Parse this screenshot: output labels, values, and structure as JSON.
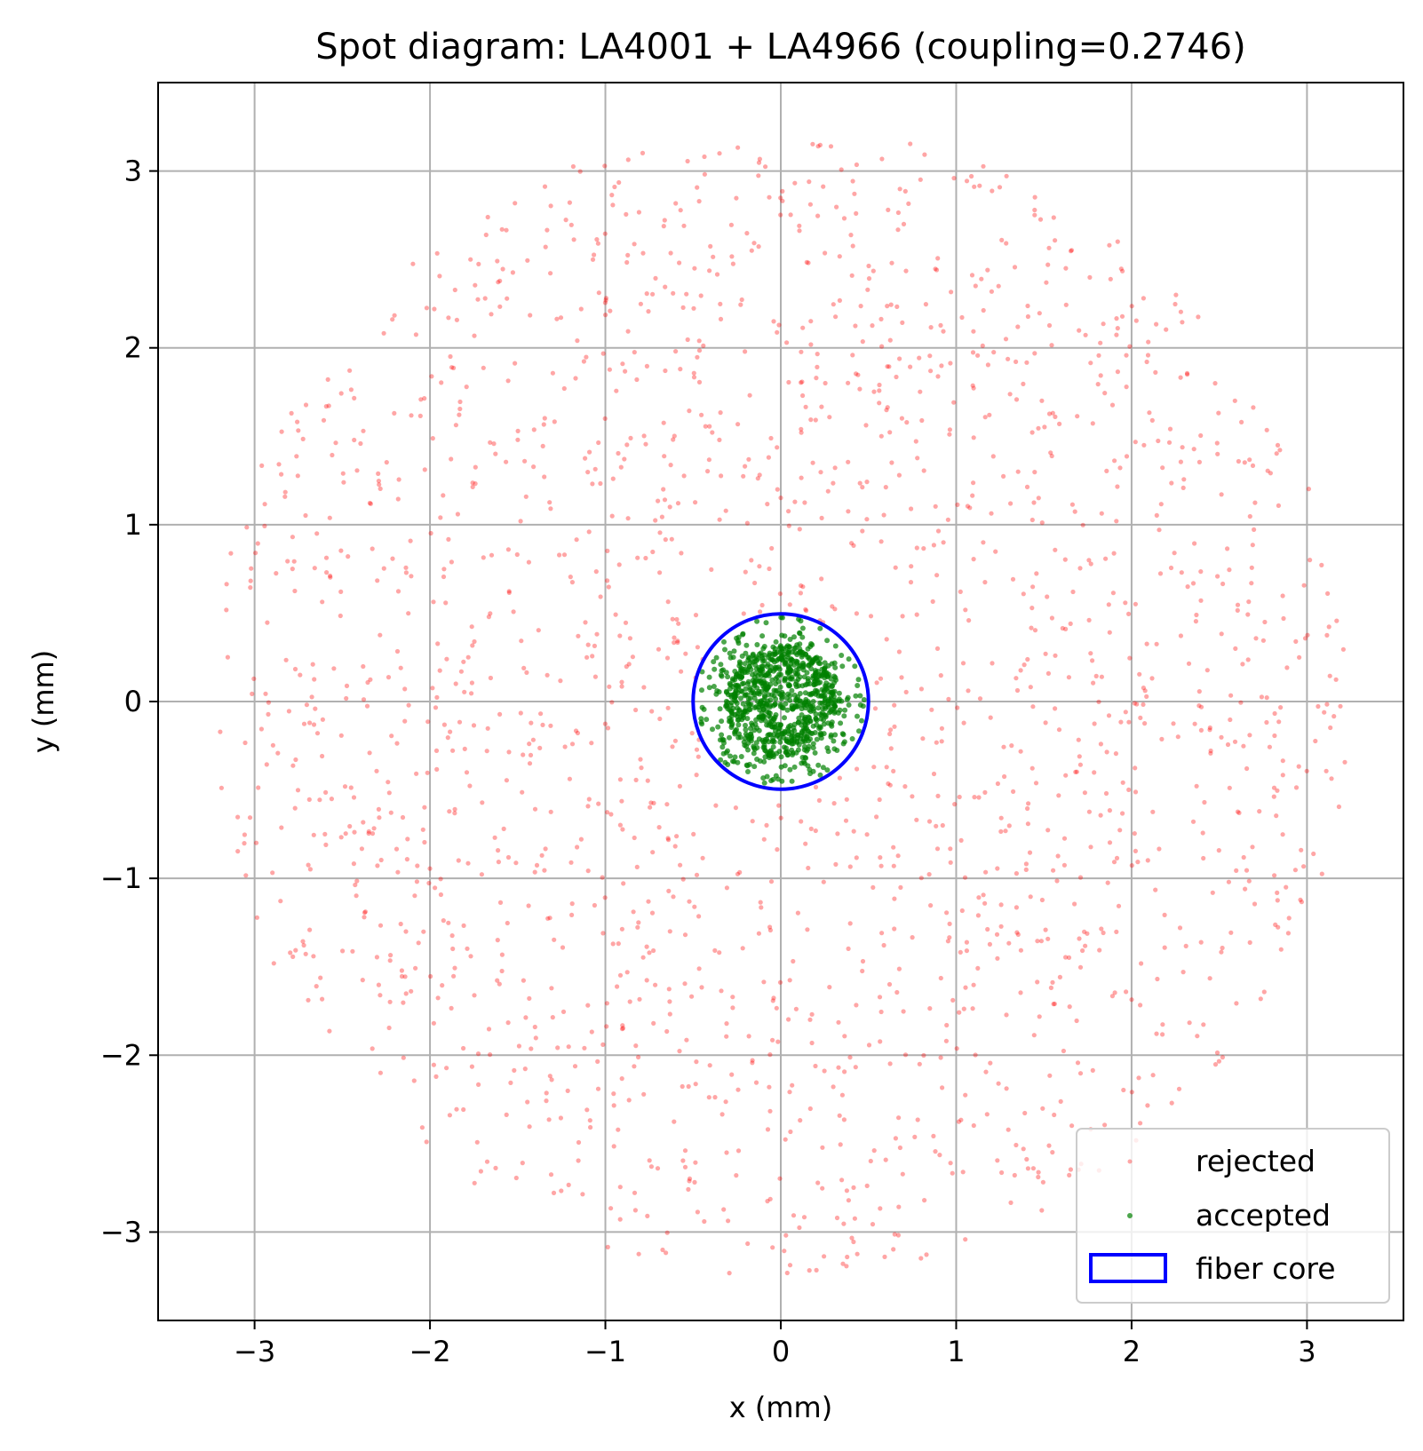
{
  "chart_data": {
    "type": "scatter",
    "title": "Spot diagram: LA4001 + LA4966 (coupling=0.2746)",
    "xlabel": "x (mm)",
    "ylabel": "y (mm)",
    "xlim": [
      -3.55,
      3.55
    ],
    "ylim": [
      -3.5,
      3.5
    ],
    "x_ticks": [
      -3,
      -2,
      -1,
      0,
      1,
      2,
      3
    ],
    "y_ticks": [
      -3,
      -2,
      -1,
      0,
      1,
      2,
      3
    ],
    "x_tick_labels": [
      "−3",
      "−2",
      "−1",
      "0",
      "1",
      "2",
      "3"
    ],
    "y_tick_labels": [
      "−3",
      "−2",
      "−1",
      "0",
      "1",
      "2",
      "3"
    ],
    "grid": true,
    "legend_position": "bottom-right",
    "series": [
      {
        "name": "rejected",
        "color": "#ff0000",
        "marker": "dot",
        "distribution": "uniform disk",
        "r_min": 0.5,
        "r_max": 3.25,
        "count": 1900
      },
      {
        "name": "accepted",
        "color": "#008000",
        "marker": "dot",
        "distribution": "dense disk",
        "center": [
          0,
          0
        ],
        "r_max": 0.48,
        "count": 950
      }
    ],
    "shapes": [
      {
        "name": "fiber core",
        "kind": "circle",
        "center": [
          0,
          0
        ],
        "radius": 0.5,
        "color": "#0000ff"
      }
    ]
  }
}
